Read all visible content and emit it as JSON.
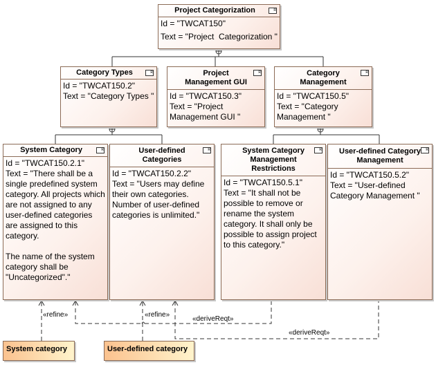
{
  "requirements": [
    {
      "title": "Project Categorization",
      "id": "Id = \"TWCAT150\"",
      "text": "Text = \"Project  Categorization \""
    },
    {
      "title": "Category Types",
      "id": "Id = \"TWCAT150.2\"",
      "text": "Text = \"Category Types \""
    },
    {
      "title": "Project Management GUI",
      "id": "Id = \"TWCAT150.3\"",
      "text": "Text = \"Project Management GUI \""
    },
    {
      "title": "Category Management",
      "id": "Id = \"TWCAT150.5\"",
      "text": "Text = \"Category Management \""
    },
    {
      "title": "System Category",
      "id": "Id = \"TWCAT150.2.1\"",
      "text": "Text = \"There shall be a single predefined system category. All projects which are not assigned to any user-defined categories are assigned to this category.\n\nThe name of the system category shall be \"Uncategorized\".\""
    },
    {
      "title": "User-defined Categories",
      "id": "Id = \"TWCAT150.2.2\"",
      "text": "Text = \"Users may define their own categories. Number of user-defined categories is unlimited.\""
    },
    {
      "title": "System Category Management Restrictions",
      "id": "Id = \"TWCAT150.5.1\"",
      "text": "Text = \"It shall not be possible to remove or rename the system category. It shall only be possible to assign project to this category.\""
    },
    {
      "title": "User-defined Category Management",
      "id": "Id = \"TWCAT150.5.2\"",
      "text": "Text = \"User-defined Category Management \""
    }
  ],
  "elements": [
    {
      "name": "System category"
    },
    {
      "name": "User-defined category"
    }
  ],
  "relations": {
    "refine": "«refine»",
    "derive": "«deriveReqt»"
  }
}
